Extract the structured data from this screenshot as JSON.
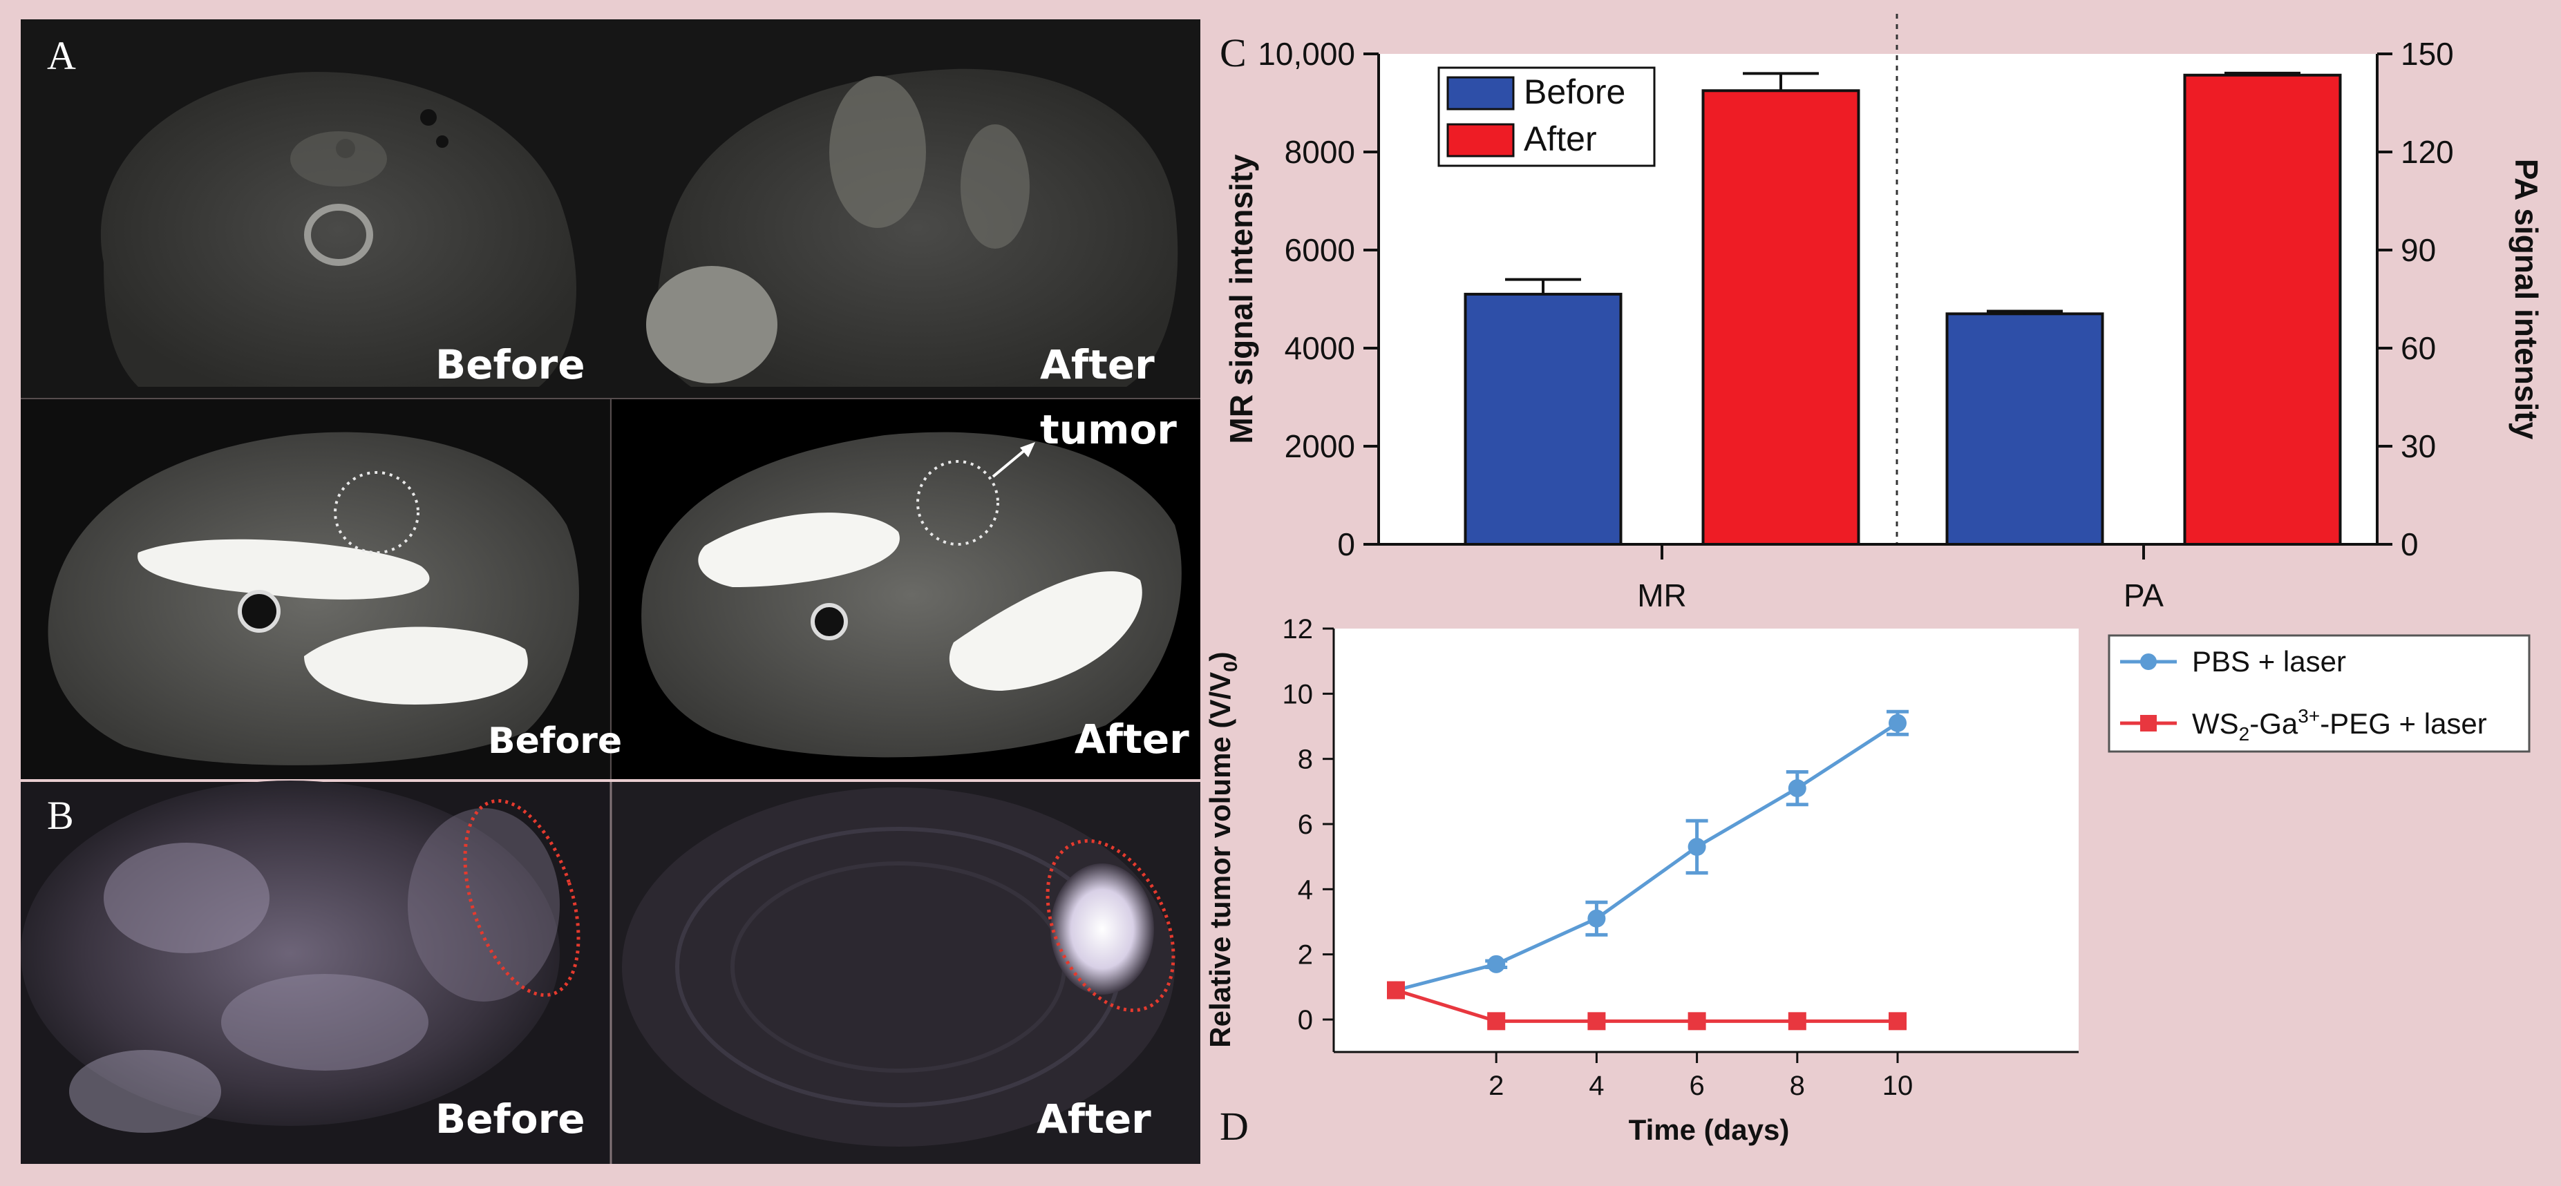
{
  "panels": {
    "a": {
      "letter": "A",
      "label_before": "Before",
      "label_after": "After",
      "label_before_2": "Before",
      "label_after_2": "After",
      "tumor_label": "tumor"
    },
    "b": {
      "letter": "B",
      "label_before": "Before",
      "label_after": "After"
    },
    "c": {
      "letter": "C"
    },
    "d": {
      "letter": "D"
    }
  },
  "colors": {
    "before": "#2e4fa8",
    "after": "#ee1c25",
    "pbs": "#5b9bd5",
    "ws2": "#e8373f"
  },
  "chart_data": [
    {
      "type": "bar",
      "id": "C",
      "categories": [
        "MR",
        "PA"
      ],
      "series": [
        {
          "name": "Before",
          "values": [
            5100,
            70.5
          ],
          "errors": [
            300,
            0.8
          ]
        },
        {
          "name": "After",
          "values": [
            9250,
            143.5
          ],
          "errors": [
            350,
            0.6
          ]
        }
      ],
      "ylabel": "MR signal intensity",
      "ylim": [
        0,
        10000
      ],
      "yticks": [
        "0",
        "2000",
        "4000",
        "6000",
        "8000",
        "10,000"
      ],
      "y2label": "PA signal intensity",
      "y2lim": [
        0,
        150
      ],
      "y2ticks": [
        "0",
        "30",
        "60",
        "90",
        "120",
        "150"
      ],
      "legend": [
        "Before",
        "After"
      ],
      "legend_position": "top-left"
    },
    {
      "type": "line",
      "id": "D",
      "xlabel": "Time (days)",
      "ylabel": "Relative tumor volume (V/V",
      "ylabel_sub": "0",
      "ylabel_close": ")",
      "ylim": [
        -1,
        12
      ],
      "yticks": [
        "0",
        "2",
        "4",
        "6",
        "8",
        "10",
        "12"
      ],
      "xticks": [
        "2",
        "4",
        "6",
        "8",
        "10"
      ],
      "series": [
        {
          "name": "PBS + laser",
          "x": [
            0,
            2,
            4,
            6,
            8,
            10
          ],
          "y": [
            0.9,
            1.7,
            3.1,
            5.3,
            7.1,
            9.1
          ],
          "errors": [
            0,
            0.1,
            0.5,
            0.8,
            0.5,
            0.35
          ]
        },
        {
          "name": "WS2-Ga3+-PEG + laser",
          "x": [
            0,
            2,
            4,
            6,
            8,
            10
          ],
          "y": [
            0.9,
            -0.05,
            -0.05,
            -0.05,
            -0.05,
            -0.05
          ],
          "errors": [
            0,
            0,
            0,
            0,
            0,
            0
          ]
        }
      ],
      "legend_parts": {
        "ws2_a": "WS",
        "ws2_sub": "2",
        "ws2_b": "-Ga",
        "ws2_sup": "3+",
        "ws2_c": "-PEG + laser"
      },
      "legend_position": "right"
    }
  ]
}
